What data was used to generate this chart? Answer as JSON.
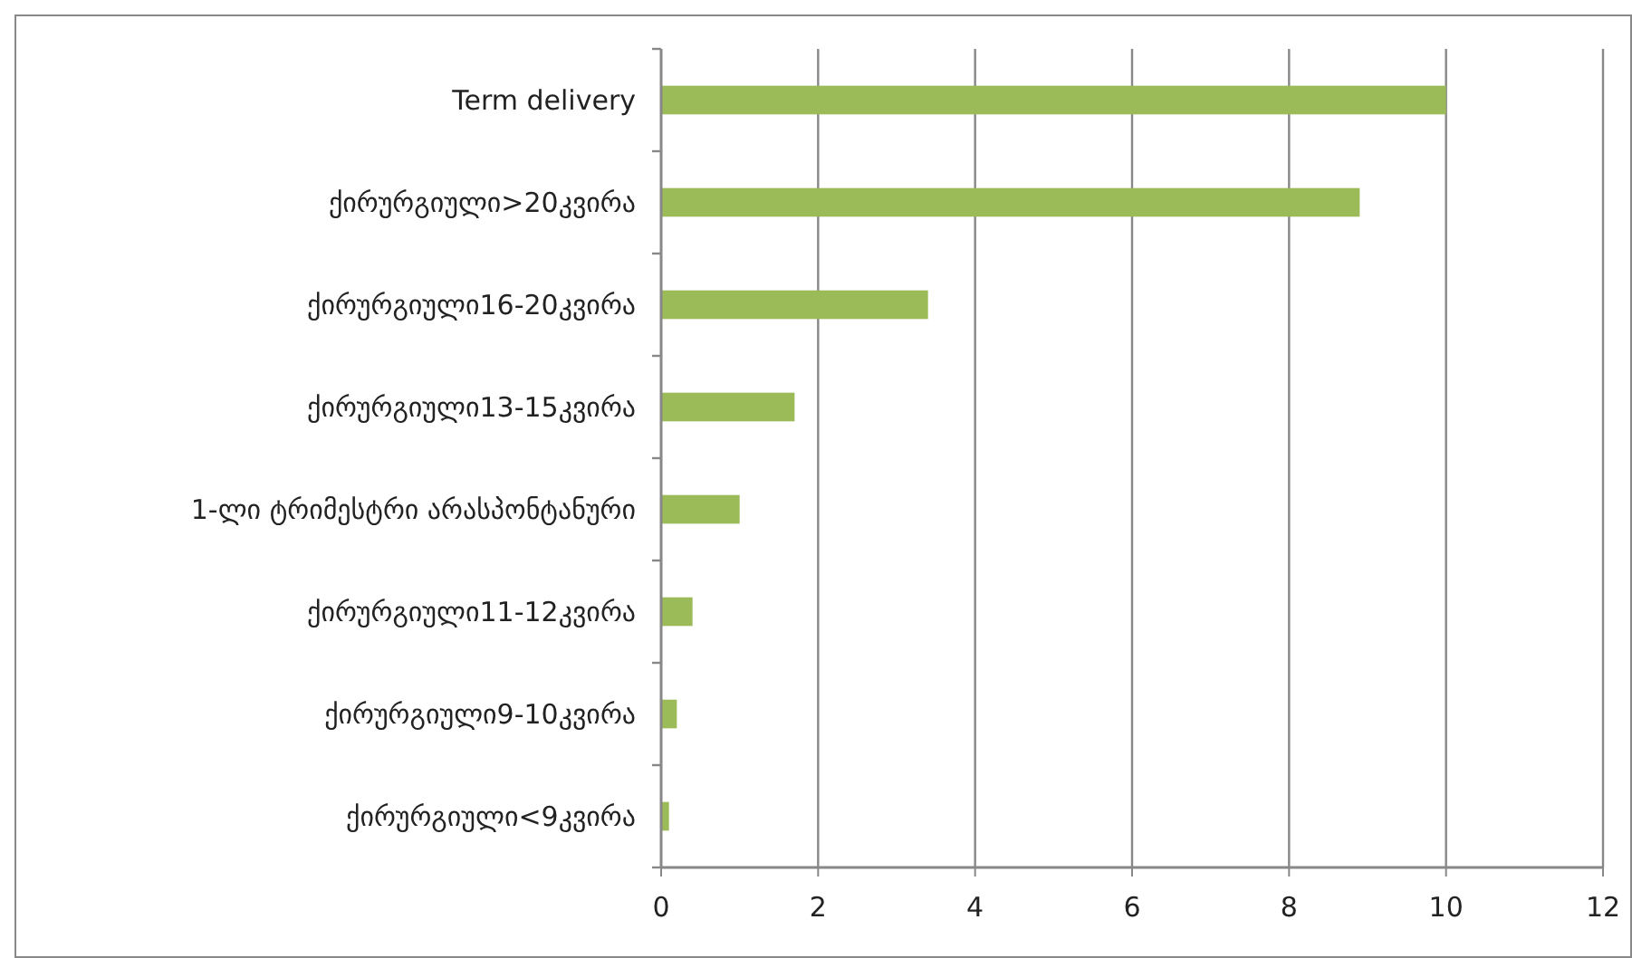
{
  "chart_data": {
    "type": "bar",
    "orientation": "horizontal",
    "categories": [
      "Term delivery",
      "ქირურგიული>20კვირა",
      "ქირურგიული16-20კვირა",
      "ქირურგიული13-15კვირა",
      "1-ლი ტრიმესტრი არასპონტანური",
      "ქირურგიული11-12კვირა",
      "ქირურგიული9-10კვირა",
      "ქირურგიული<9კვირა"
    ],
    "values": [
      10,
      8.9,
      3.4,
      1.7,
      1.0,
      0.4,
      0.2,
      0.1
    ],
    "color": "#9bbb59",
    "xlim": [
      0,
      12
    ],
    "xticks": [
      0,
      2,
      4,
      6,
      8,
      10,
      12
    ],
    "grid": "x"
  }
}
